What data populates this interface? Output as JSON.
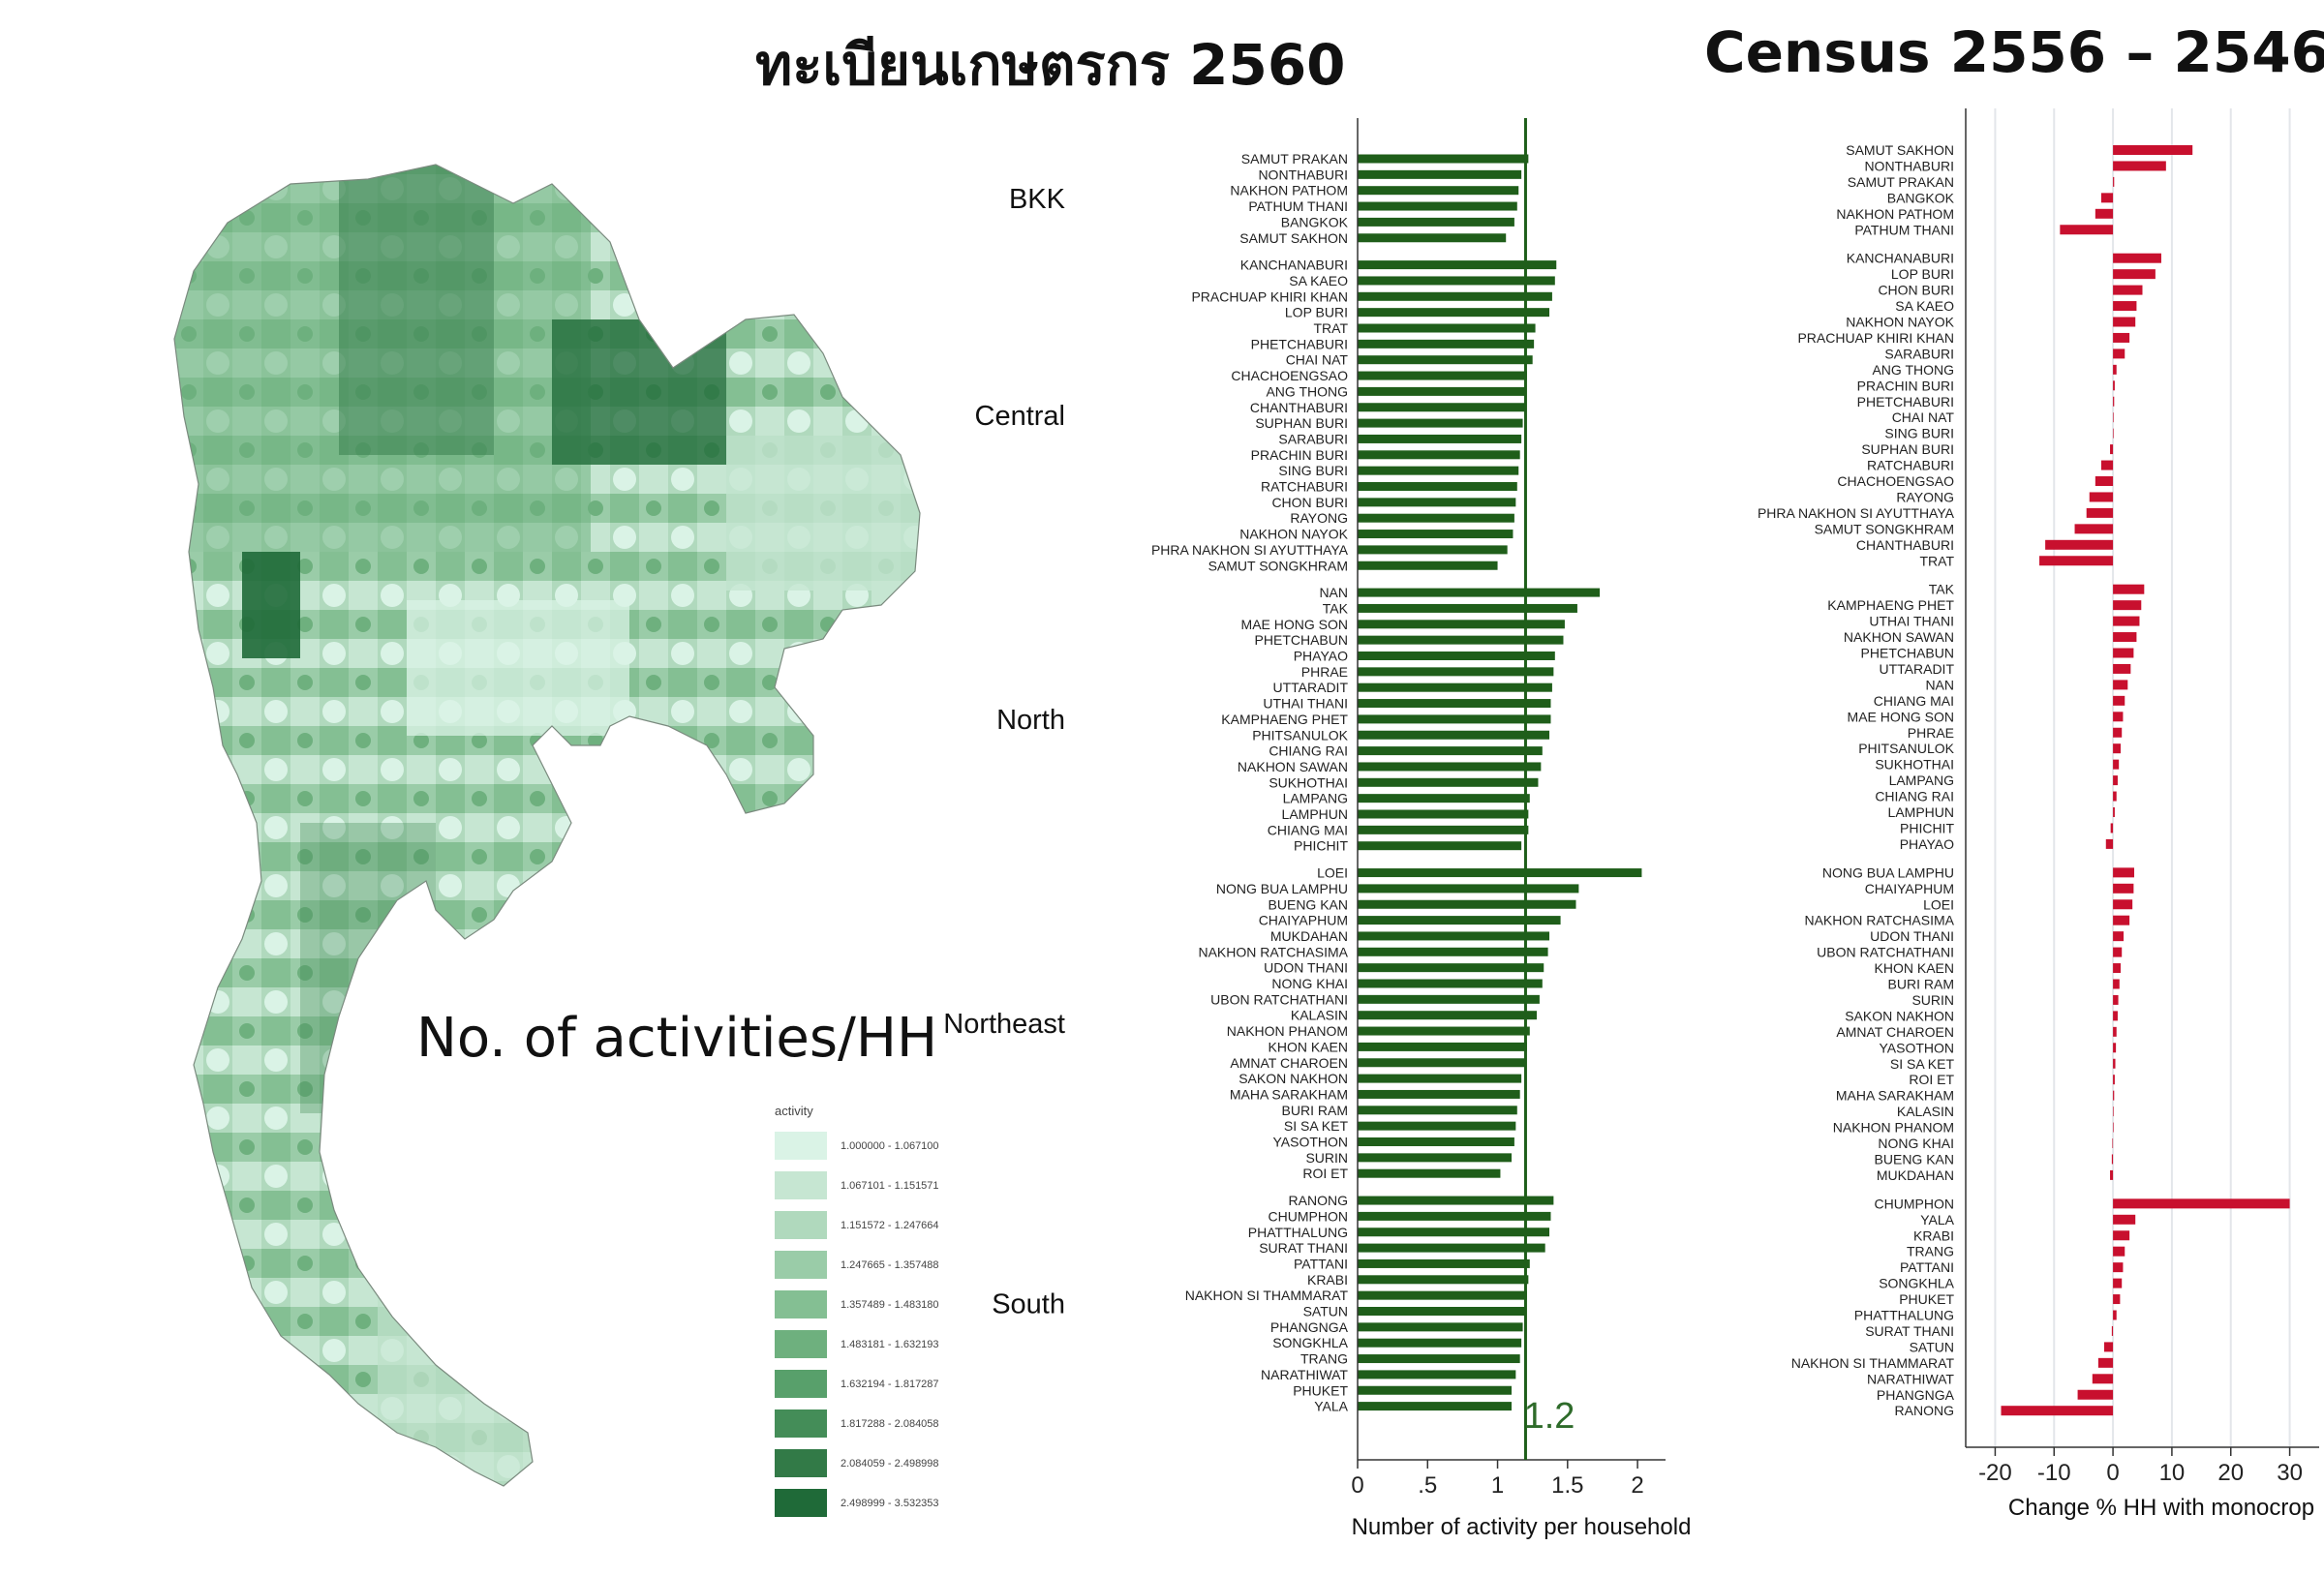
{
  "titles": {
    "left": "ทะเบียนเกษตรกร 2560",
    "right": "Census 2556 – 2546"
  },
  "map": {
    "caption": "No. of activities/HH",
    "legend_title": "activity",
    "legend": [
      {
        "label": "1.000000 - 1.067100",
        "color": "#daf3e6"
      },
      {
        "label": "1.067101 - 1.151571",
        "color": "#c6e6d2"
      },
      {
        "label": "1.151572 - 1.247664",
        "color": "#b0d9bd"
      },
      {
        "label": "1.247665 - 1.357488",
        "color": "#9acca8"
      },
      {
        "label": "1.357489 - 1.483180",
        "color": "#84bf93"
      },
      {
        "label": "1.483181 - 1.632193",
        "color": "#6eb07e"
      },
      {
        "label": "1.632194 - 1.817287",
        "color": "#58a06b"
      },
      {
        "label": "1.817288 - 2.084058",
        "color": "#448d58"
      },
      {
        "label": "2.084059 - 2.498998",
        "color": "#327a47"
      },
      {
        "label": "2.498999 - 3.532353",
        "color": "#1f6a38"
      }
    ]
  },
  "chart_data": [
    {
      "type": "bar",
      "orientation": "horizontal",
      "xlabel": "Number of activity per household",
      "xticks": [
        {
          "v": 0,
          "label": "0"
        },
        {
          "v": 0.5,
          "label": ".5"
        },
        {
          "v": 1,
          "label": "1"
        },
        {
          "v": 1.5,
          "label": "1.5"
        },
        {
          "v": 2,
          "label": "2"
        }
      ],
      "xlim": [
        0,
        2.2
      ],
      "reference_line": {
        "value": 1.2,
        "label": "1.2"
      },
      "bar_color": "#1f5e1a",
      "groups": [
        {
          "name": "BKK",
          "items": [
            {
              "label": "SAMUT PRAKAN",
              "value": 1.22
            },
            {
              "label": "NONTHABURI",
              "value": 1.17
            },
            {
              "label": "NAKHON PATHOM",
              "value": 1.15
            },
            {
              "label": "PATHUM THANI",
              "value": 1.14
            },
            {
              "label": "BANGKOK",
              "value": 1.12
            },
            {
              "label": "SAMUT SAKHON",
              "value": 1.06
            }
          ]
        },
        {
          "name": "Central",
          "items": [
            {
              "label": "KANCHANABURI",
              "value": 1.42
            },
            {
              "label": "SA KAEO",
              "value": 1.41
            },
            {
              "label": "PRACHUAP KHIRI KHAN",
              "value": 1.39
            },
            {
              "label": "LOP BURI",
              "value": 1.37
            },
            {
              "label": "TRAT",
              "value": 1.27
            },
            {
              "label": "PHETCHABURI",
              "value": 1.26
            },
            {
              "label": "CHAI NAT",
              "value": 1.25
            },
            {
              "label": "CHACHOENGSAO",
              "value": 1.21
            },
            {
              "label": "ANG THONG",
              "value": 1.2
            },
            {
              "label": "CHANTHABURI",
              "value": 1.19
            },
            {
              "label": "SUPHAN BURI",
              "value": 1.18
            },
            {
              "label": "SARABURI",
              "value": 1.17
            },
            {
              "label": "PRACHIN BURI",
              "value": 1.16
            },
            {
              "label": "SING BURI",
              "value": 1.15
            },
            {
              "label": "RATCHABURI",
              "value": 1.14
            },
            {
              "label": "CHON BURI",
              "value": 1.13
            },
            {
              "label": "RAYONG",
              "value": 1.12
            },
            {
              "label": "NAKHON NAYOK",
              "value": 1.11
            },
            {
              "label": "PHRA NAKHON SI AYUTTHAYA",
              "value": 1.07
            },
            {
              "label": "SAMUT SONGKHRAM",
              "value": 1.0
            }
          ]
        },
        {
          "name": "North",
          "items": [
            {
              "label": "NAN",
              "value": 1.73
            },
            {
              "label": "TAK",
              "value": 1.57
            },
            {
              "label": "MAE HONG SON",
              "value": 1.48
            },
            {
              "label": "PHETCHABUN",
              "value": 1.47
            },
            {
              "label": "PHAYAO",
              "value": 1.41
            },
            {
              "label": "PHRAE",
              "value": 1.4
            },
            {
              "label": "UTTARADIT",
              "value": 1.39
            },
            {
              "label": "UTHAI THANI",
              "value": 1.38
            },
            {
              "label": "KAMPHAENG PHET",
              "value": 1.38
            },
            {
              "label": "PHITSANULOK",
              "value": 1.37
            },
            {
              "label": "CHIANG RAI",
              "value": 1.32
            },
            {
              "label": "NAKHON SAWAN",
              "value": 1.31
            },
            {
              "label": "SUKHOTHAI",
              "value": 1.29
            },
            {
              "label": "LAMPANG",
              "value": 1.23
            },
            {
              "label": "LAMPHUN",
              "value": 1.22
            },
            {
              "label": "CHIANG MAI",
              "value": 1.22
            },
            {
              "label": "PHICHIT",
              "value": 1.17
            }
          ]
        },
        {
          "name": "Northeast",
          "items": [
            {
              "label": "LOEI",
              "value": 2.03
            },
            {
              "label": "NONG BUA LAMPHU",
              "value": 1.58
            },
            {
              "label": "BUENG KAN",
              "value": 1.56
            },
            {
              "label": "CHAIYAPHUM",
              "value": 1.45
            },
            {
              "label": "MUKDAHAN",
              "value": 1.37
            },
            {
              "label": "NAKHON RATCHASIMA",
              "value": 1.36
            },
            {
              "label": "UDON THANI",
              "value": 1.33
            },
            {
              "label": "NONG KHAI",
              "value": 1.32
            },
            {
              "label": "UBON RATCHATHANI",
              "value": 1.3
            },
            {
              "label": "KALASIN",
              "value": 1.28
            },
            {
              "label": "NAKHON PHANOM",
              "value": 1.23
            },
            {
              "label": "KHON KAEN",
              "value": 1.21
            },
            {
              "label": "AMNAT CHAROEN",
              "value": 1.2
            },
            {
              "label": "SAKON NAKHON",
              "value": 1.17
            },
            {
              "label": "MAHA SARAKHAM",
              "value": 1.16
            },
            {
              "label": "BURI RAM",
              "value": 1.14
            },
            {
              "label": "SI SA KET",
              "value": 1.13
            },
            {
              "label": "YASOTHON",
              "value": 1.12
            },
            {
              "label": "SURIN",
              "value": 1.1
            },
            {
              "label": "ROI ET",
              "value": 1.02
            }
          ]
        },
        {
          "name": "South",
          "items": [
            {
              "label": "RANONG",
              "value": 1.4
            },
            {
              "label": "CHUMPHON",
              "value": 1.38
            },
            {
              "label": "PHATTHALUNG",
              "value": 1.37
            },
            {
              "label": "SURAT THANI",
              "value": 1.34
            },
            {
              "label": "PATTANI",
              "value": 1.23
            },
            {
              "label": "KRABI",
              "value": 1.22
            },
            {
              "label": "NAKHON SI THAMMARAT",
              "value": 1.21
            },
            {
              "label": "SATUN",
              "value": 1.2
            },
            {
              "label": "PHANGNGA",
              "value": 1.18
            },
            {
              "label": "SONGKHLA",
              "value": 1.17
            },
            {
              "label": "TRANG",
              "value": 1.16
            },
            {
              "label": "NARATHIWAT",
              "value": 1.13
            },
            {
              "label": "PHUKET",
              "value": 1.1
            },
            {
              "label": "YALA",
              "value": 1.1
            }
          ]
        }
      ]
    },
    {
      "type": "bar",
      "orientation": "horizontal",
      "xlabel": "Change % HH with monocrop",
      "xticks": [
        {
          "v": -20,
          "label": "-20"
        },
        {
          "v": -10,
          "label": "-10"
        },
        {
          "v": 0,
          "label": "0"
        },
        {
          "v": 10,
          "label": "10"
        },
        {
          "v": 20,
          "label": "20"
        },
        {
          "v": 30,
          "label": "30"
        }
      ],
      "xlim": [
        -25,
        35
      ],
      "grid": true,
      "bar_color": "#c8102e",
      "groups": [
        {
          "items": [
            {
              "label": "SAMUT SAKHON",
              "value": 13.5
            },
            {
              "label": "NONTHABURI",
              "value": 9.0
            },
            {
              "label": "SAMUT PRAKAN",
              "value": 0.2
            },
            {
              "label": "BANGKOK",
              "value": -2.0
            },
            {
              "label": "NAKHON PATHOM",
              "value": -3.0
            },
            {
              "label": "PATHUM THANI",
              "value": -9.0
            }
          ]
        },
        {
          "items": [
            {
              "label": "KANCHANABURI",
              "value": 8.2
            },
            {
              "label": "LOP BURI",
              "value": 7.2
            },
            {
              "label": "CHON BURI",
              "value": 5.0
            },
            {
              "label": "SA KAEO",
              "value": 4.0
            },
            {
              "label": "NAKHON NAYOK",
              "value": 3.8
            },
            {
              "label": "PRACHUAP KHIRI KHAN",
              "value": 2.8
            },
            {
              "label": "SARABURI",
              "value": 2.0
            },
            {
              "label": "ANG THONG",
              "value": 0.6
            },
            {
              "label": "PRACHIN BURI",
              "value": 0.3
            },
            {
              "label": "PHETCHABURI",
              "value": 0.2
            },
            {
              "label": "CHAI NAT",
              "value": 0.1
            },
            {
              "label": "SING BURI",
              "value": 0.0
            },
            {
              "label": "SUPHAN BURI",
              "value": -0.5
            },
            {
              "label": "RATCHABURI",
              "value": -2.0
            },
            {
              "label": "CHACHOENGSAO",
              "value": -3.0
            },
            {
              "label": "RAYONG",
              "value": -4.0
            },
            {
              "label": "PHRA NAKHON SI AYUTTHAYA",
              "value": -4.5
            },
            {
              "label": "SAMUT SONGKHRAM",
              "value": -6.5
            },
            {
              "label": "CHANTHABURI",
              "value": -11.5
            },
            {
              "label": "TRAT",
              "value": -12.5
            }
          ]
        },
        {
          "items": [
            {
              "label": "TAK",
              "value": 5.3
            },
            {
              "label": "KAMPHAENG PHET",
              "value": 4.8
            },
            {
              "label": "UTHAI THANI",
              "value": 4.5
            },
            {
              "label": "NAKHON SAWAN",
              "value": 4.0
            },
            {
              "label": "PHETCHABUN",
              "value": 3.5
            },
            {
              "label": "UTTARADIT",
              "value": 3.0
            },
            {
              "label": "NAN",
              "value": 2.5
            },
            {
              "label": "CHIANG MAI",
              "value": 2.0
            },
            {
              "label": "MAE HONG SON",
              "value": 1.7
            },
            {
              "label": "PHRAE",
              "value": 1.5
            },
            {
              "label": "PHITSANULOK",
              "value": 1.3
            },
            {
              "label": "SUKHOTHAI",
              "value": 1.0
            },
            {
              "label": "LAMPANG",
              "value": 0.8
            },
            {
              "label": "CHIANG RAI",
              "value": 0.6
            },
            {
              "label": "LAMPHUN",
              "value": 0.3
            },
            {
              "label": "PHICHIT",
              "value": -0.4
            },
            {
              "label": "PHAYAO",
              "value": -1.2
            }
          ]
        },
        {
          "items": [
            {
              "label": "NONG BUA LAMPHU",
              "value": 3.6
            },
            {
              "label": "CHAIYAPHUM",
              "value": 3.5
            },
            {
              "label": "LOEI",
              "value": 3.3
            },
            {
              "label": "NAKHON RATCHASIMA",
              "value": 2.8
            },
            {
              "label": "UDON THANI",
              "value": 1.8
            },
            {
              "label": "UBON RATCHATHANI",
              "value": 1.5
            },
            {
              "label": "KHON KAEN",
              "value": 1.3
            },
            {
              "label": "BURI RAM",
              "value": 1.1
            },
            {
              "label": "SURIN",
              "value": 0.9
            },
            {
              "label": "SAKON NAKHON",
              "value": 0.8
            },
            {
              "label": "AMNAT CHAROEN",
              "value": 0.6
            },
            {
              "label": "YASOTHON",
              "value": 0.5
            },
            {
              "label": "SI SA KET",
              "value": 0.4
            },
            {
              "label": "ROI ET",
              "value": 0.3
            },
            {
              "label": "MAHA SARAKHAM",
              "value": 0.2
            },
            {
              "label": "KALASIN",
              "value": 0.1
            },
            {
              "label": "NAKHON PHANOM",
              "value": 0.0
            },
            {
              "label": "NONG KHAI",
              "value": -0.1
            },
            {
              "label": "BUENG KAN",
              "value": -0.2
            },
            {
              "label": "MUKDAHAN",
              "value": -0.5
            }
          ]
        },
        {
          "items": [
            {
              "label": "CHUMPHON",
              "value": 30.0
            },
            {
              "label": "YALA",
              "value": 3.8
            },
            {
              "label": "KRABI",
              "value": 2.8
            },
            {
              "label": "TRANG",
              "value": 2.0
            },
            {
              "label": "PATTANI",
              "value": 1.7
            },
            {
              "label": "SONGKHLA",
              "value": 1.5
            },
            {
              "label": "PHUKET",
              "value": 1.2
            },
            {
              "label": "PHATTHALUNG",
              "value": 0.6
            },
            {
              "label": "SURAT THANI",
              "value": -0.2
            },
            {
              "label": "SATUN",
              "value": -1.5
            },
            {
              "label": "NAKHON SI THAMMARAT",
              "value": -2.5
            },
            {
              "label": "NARATHIWAT",
              "value": -3.5
            },
            {
              "label": "PHANGNGA",
              "value": -6.0
            },
            {
              "label": "RANONG",
              "value": -19.0
            }
          ]
        }
      ]
    }
  ]
}
